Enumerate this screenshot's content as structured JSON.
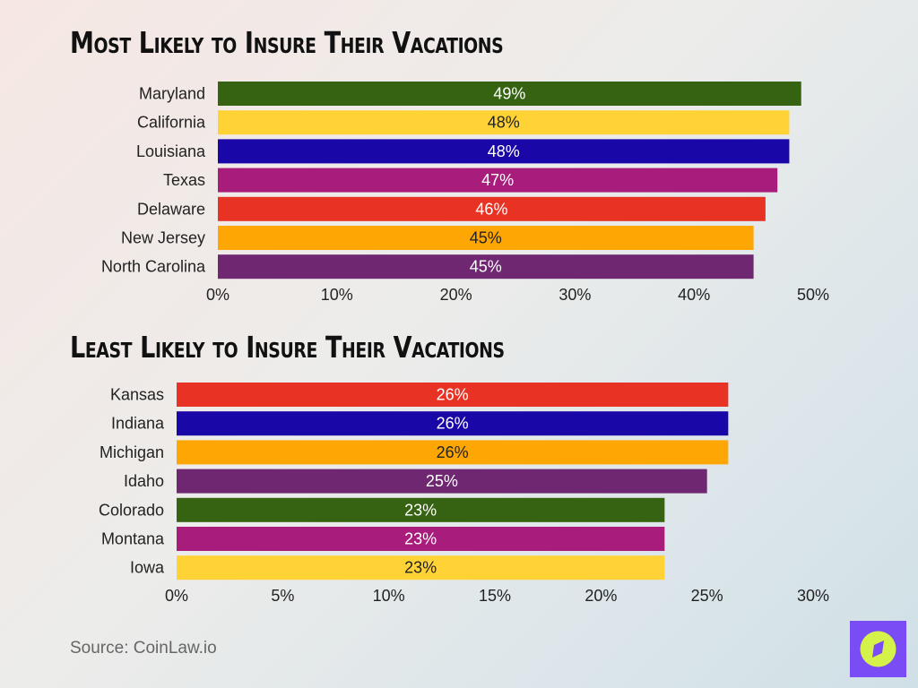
{
  "chart_data": [
    {
      "type": "bar",
      "orientation": "horizontal",
      "title": "Most Likely to Insure Their Vacations",
      "categories": [
        "Maryland",
        "California",
        "Louisiana",
        "Texas",
        "Delaware",
        "New Jersey",
        "North Carolina"
      ],
      "values": [
        49,
        48,
        48,
        47,
        46,
        45,
        45
      ],
      "data_labels": [
        "49%",
        "48%",
        "48%",
        "47%",
        "46%",
        "45%",
        "45%"
      ],
      "colors": [
        "#356312",
        "#ffd335",
        "#1a07a8",
        "#a81c7c",
        "#e83324",
        "#fda604",
        "#6e2770"
      ],
      "label_colors": [
        "#ffffff",
        "#222222",
        "#ffffff",
        "#ffffff",
        "#ffffff",
        "#222222",
        "#ffffff"
      ],
      "xlim": [
        0,
        50
      ],
      "xticks": [
        0,
        10,
        20,
        30,
        40,
        50
      ],
      "xtick_labels": [
        "0%",
        "10%",
        "20%",
        "30%",
        "40%",
        "50%"
      ],
      "grid": false
    },
    {
      "type": "bar",
      "orientation": "horizontal",
      "title": "Least Likely to Insure Their Vacations",
      "categories": [
        "Kansas",
        "Indiana",
        "Michigan",
        "Idaho",
        "Colorado",
        "Montana",
        "Iowa"
      ],
      "values": [
        26,
        26,
        26,
        25,
        23,
        23,
        23
      ],
      "data_labels": [
        "26%",
        "26%",
        "26%",
        "25%",
        "23%",
        "23%",
        "23%"
      ],
      "colors": [
        "#e83324",
        "#1a07a8",
        "#fda604",
        "#6e2770",
        "#356312",
        "#a81c7c",
        "#ffd335"
      ],
      "label_colors": [
        "#ffffff",
        "#ffffff",
        "#222222",
        "#ffffff",
        "#ffffff",
        "#ffffff",
        "#222222"
      ],
      "xlim": [
        0,
        30
      ],
      "xticks": [
        0,
        5,
        10,
        15,
        20,
        25,
        30
      ],
      "xtick_labels": [
        "0%",
        "5%",
        "10%",
        "15%",
        "20%",
        "25%",
        "30%"
      ],
      "grid": false
    }
  ],
  "source": "Source: CoinLaw.io",
  "logo": {
    "icon": "compass-icon",
    "bg": "#7a4cf5",
    "fg": "#d4f24a"
  }
}
